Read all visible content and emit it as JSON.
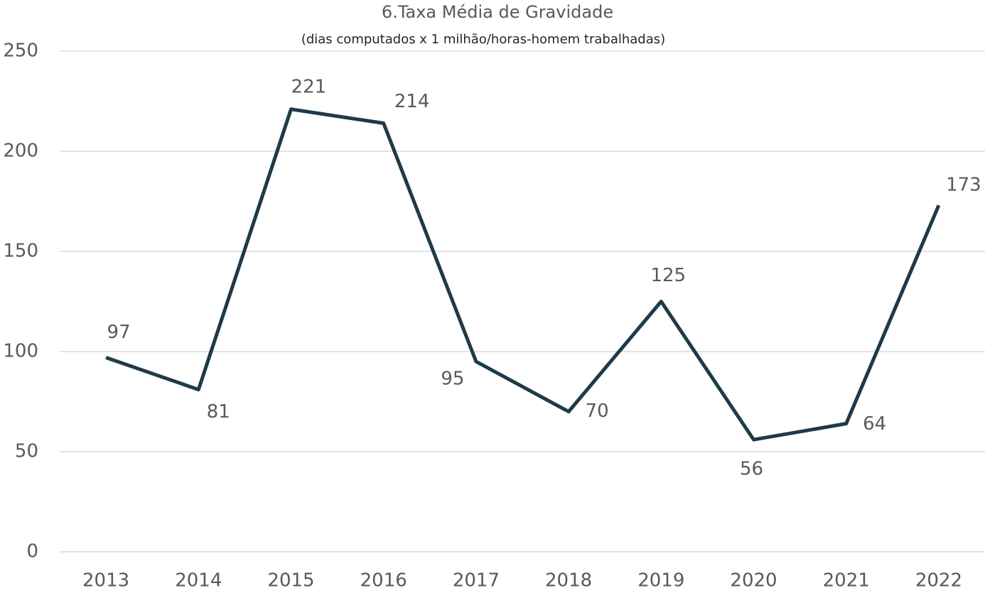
{
  "chart_data": {
    "type": "line",
    "title": "6.Taxa Média de Gravidade",
    "subtitle": "(dias computados x 1 milhão/horas-homem trabalhadas)",
    "categories": [
      "2013",
      "2014",
      "2015",
      "2016",
      "2017",
      "2018",
      "2019",
      "2020",
      "2021",
      "2022"
    ],
    "values": [
      97,
      81,
      221,
      214,
      95,
      70,
      125,
      56,
      64,
      173
    ],
    "color": "#1f3a48",
    "ylim": [
      0,
      250
    ],
    "yticks": [
      0,
      50,
      100,
      150,
      200,
      250
    ],
    "grid": true
  }
}
